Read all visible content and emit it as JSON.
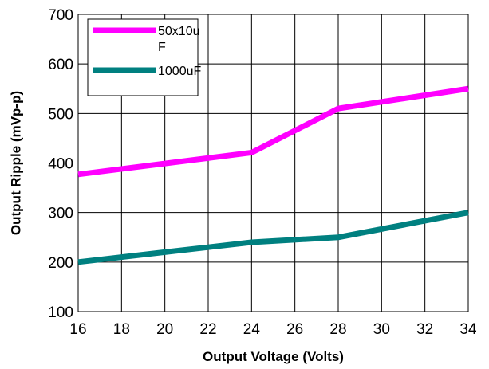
{
  "chart_data": {
    "type": "line",
    "xlabel": "Output Voltage (Volts)",
    "ylabel": "Output Ripple (mVp-p)",
    "xlim": [
      16,
      34
    ],
    "ylim": [
      100,
      700
    ],
    "x_ticks": [
      "16",
      "18",
      "20",
      "22",
      "24",
      "26",
      "28",
      "30",
      "32",
      "34"
    ],
    "y_ticks": [
      "100",
      "200",
      "300",
      "400",
      "500",
      "600",
      "700"
    ],
    "grid": true,
    "legend_position": "top-left",
    "series": [
      {
        "name_lines": [
          "50x10u",
          "F"
        ],
        "color": "#ff00ff",
        "x": [
          16,
          24,
          28,
          34
        ],
        "y": [
          377,
          421,
          510,
          550
        ]
      },
      {
        "name": "1000uF",
        "color": "#008080",
        "x": [
          16,
          20,
          24,
          28,
          34
        ],
        "y": [
          200,
          220,
          240,
          250,
          300
        ]
      }
    ]
  }
}
